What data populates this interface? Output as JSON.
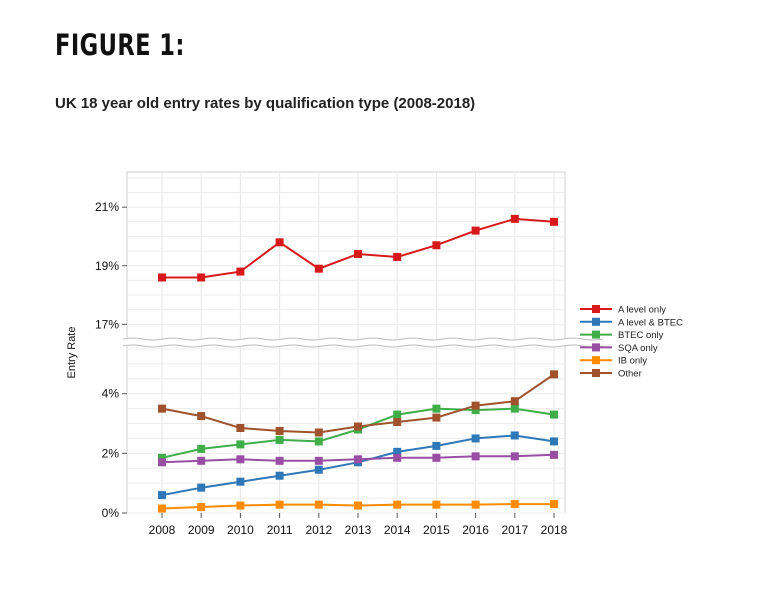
{
  "figure": {
    "label": "FIGURE 1:",
    "title": "UK 18 year old entry rates by qualification type (2008-2018)"
  },
  "chart_data": {
    "type": "line",
    "ylabel": "Entry Rate",
    "x": [
      "2008",
      "2009",
      "2010",
      "2011",
      "2012",
      "2013",
      "2014",
      "2015",
      "2016",
      "2017",
      "2018"
    ],
    "broken_axis": true,
    "ylim_lower": [
      0,
      5.6
    ],
    "ylim_upper": [
      16.5,
      22.2
    ],
    "yticks_lower": [
      {
        "value": 0,
        "label": "0%"
      },
      {
        "value": 2,
        "label": "2%"
      },
      {
        "value": 4,
        "label": "4%"
      }
    ],
    "yticks_upper": [
      {
        "value": 17,
        "label": "17%"
      },
      {
        "value": 19,
        "label": "19%"
      },
      {
        "value": 21,
        "label": "21%"
      }
    ],
    "grid": true,
    "legend_position": "right",
    "series": [
      {
        "name": "A level only",
        "color": "#d7191c",
        "values": [
          18.6,
          18.6,
          18.8,
          19.8,
          18.9,
          19.4,
          19.3,
          19.7,
          20.2,
          20.6,
          20.5
        ]
      },
      {
        "name": "A level & BTEC",
        "color": "#2f78b7",
        "values": [
          0.6,
          0.85,
          1.05,
          1.25,
          1.45,
          1.7,
          2.05,
          2.25,
          2.5,
          2.6,
          2.4
        ]
      },
      {
        "name": "BTEC only",
        "color": "#3fae49",
        "values": [
          1.85,
          2.15,
          2.3,
          2.45,
          2.4,
          2.8,
          3.3,
          3.5,
          3.45,
          3.5,
          3.3
        ]
      },
      {
        "name": "SQA only",
        "color": "#984ea3",
        "values": [
          1.7,
          1.75,
          1.8,
          1.75,
          1.75,
          1.8,
          1.85,
          1.85,
          1.9,
          1.9,
          1.95
        ]
      },
      {
        "name": "IB only",
        "color": "#ff8c00",
        "values": [
          0.15,
          0.2,
          0.25,
          0.28,
          0.28,
          0.25,
          0.28,
          0.28,
          0.28,
          0.3,
          0.3
        ]
      },
      {
        "name": "Other",
        "color": "#a0522d",
        "values": [
          3.5,
          3.25,
          2.85,
          2.75,
          2.7,
          2.9,
          3.05,
          3.2,
          3.6,
          3.75,
          4.65
        ]
      }
    ]
  }
}
